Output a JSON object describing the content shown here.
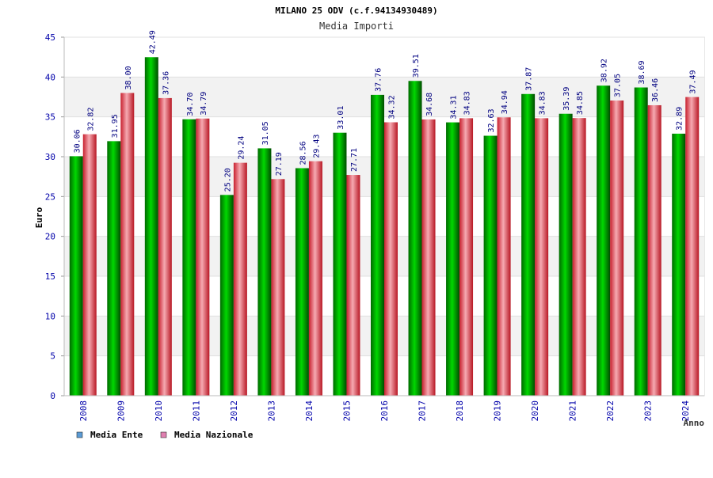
{
  "chart_data": {
    "type": "bar",
    "title": "MILANO 25 ODV (c.f.94134930489)",
    "subtitle": "Media Importi",
    "ylabel": "Euro",
    "xlabel": "Anno",
    "ylim": [
      0,
      45
    ],
    "yticks": [
      0,
      5,
      10,
      15,
      20,
      25,
      30,
      35,
      40,
      45
    ],
    "grid": true,
    "legend_position": "bottom-left",
    "categories": [
      "2008",
      "2009",
      "2010",
      "2011",
      "2012",
      "2013",
      "2014",
      "2015",
      "2016",
      "2017",
      "2018",
      "2019",
      "2020",
      "2021",
      "2022",
      "2023",
      "2024"
    ],
    "series": [
      {
        "name": "Media Ente",
        "color": "#00b000",
        "legend_color": "#5b9bd5",
        "values": [
          30.06,
          31.95,
          42.49,
          34.7,
          25.2,
          31.05,
          28.56,
          33.01,
          37.76,
          39.51,
          34.31,
          32.63,
          37.87,
          35.39,
          38.92,
          38.69,
          32.89
        ],
        "labels": [
          "30.06",
          "31.95",
          "42.49",
          "34.70",
          "25.20",
          "31.05",
          "28.56",
          "33.01",
          "37.76",
          "39.51",
          "34.31",
          "32.63",
          "37.87",
          "35.39",
          "38.92",
          "38.69",
          "32.89"
        ]
      },
      {
        "name": "Media Nazionale",
        "color": "#e23a4a",
        "legend_color": "#e07fb0",
        "values": [
          32.82,
          38.0,
          37.36,
          34.79,
          29.24,
          27.19,
          29.43,
          27.71,
          34.32,
          34.68,
          34.83,
          34.94,
          34.83,
          34.85,
          37.05,
          36.46,
          37.49
        ],
        "labels": [
          "32.82",
          "38.00",
          "37.36",
          "34.79",
          "29.24",
          "27.19",
          "29.43",
          "27.71",
          "34.32",
          "34.68",
          "34.83",
          "34.94",
          "34.83",
          "34.85",
          "37.05",
          "36.46",
          "37.49"
        ]
      }
    ],
    "colors": {
      "axis_text": "#0000aa",
      "title_text": "#000000",
      "subtitle_text": "#333333",
      "data_label_text": "#000080",
      "band": "#f2f2f2",
      "grid": "#e0e0e0"
    }
  }
}
